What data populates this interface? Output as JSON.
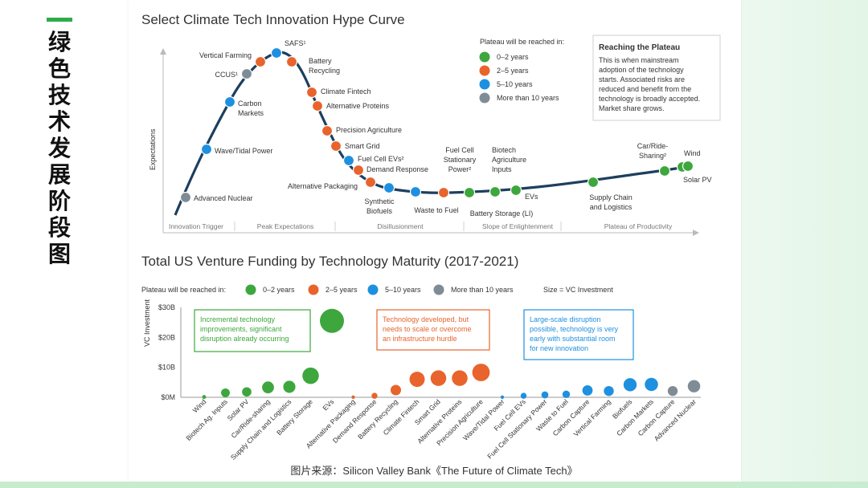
{
  "sidebar": {
    "title": "绿色技术发展阶段图"
  },
  "colors": {
    "g02": "#3da73d",
    "g25": "#e8642c",
    "g510": "#1e90e0",
    "g10p": "#7f8c96",
    "curve": "#1d3f5e",
    "accent": "#2dac48"
  },
  "hype": {
    "title": "Select Climate Tech Innovation Hype Curve",
    "y_label": "Expectations",
    "stages": [
      "Innovation Trigger",
      "Peak Expectations",
      "Disillusionment",
      "Slope of Enlightenment",
      "Plateau of Productivity"
    ],
    "legend_title": "Plateau will be reached in:",
    "legend": [
      "0–2 years",
      "2–5 years",
      "5–10 years",
      "More than 10 years"
    ],
    "info_title": "Reaching the Plateau",
    "info_lines": [
      "This is when mainstream",
      "adoption of the technology",
      "starts. Associated risks are",
      "reduced and benefit from the",
      "technology is broadly accepted.",
      "Market share grows."
    ],
    "labels": [
      [
        "Advanced Nuclear"
      ],
      [
        "Wave/Tidal Power"
      ],
      [
        "Carbon",
        "Markets"
      ],
      [
        "CCUS¹"
      ],
      [
        "Vertical Farming"
      ],
      [
        "SAFS¹"
      ],
      [
        "Battery",
        "Recycling"
      ],
      [
        "Climate Fintech"
      ],
      [
        "Alternative Proteins"
      ],
      [
        "Precision Agriculture"
      ],
      [
        "Smart Grid"
      ],
      [
        "Fuel Cell EVs²"
      ],
      [
        "Demand Response"
      ],
      [
        "Alternative Packaging"
      ],
      [
        "Synthetic",
        "Biofuels"
      ],
      [
        "Waste to Fuel"
      ],
      [
        "Fuel Cell",
        "Stationary",
        "Power²"
      ],
      [
        "Battery Storage (LI)"
      ],
      [
        "Biotech",
        "Agriculture",
        "Inputs"
      ],
      [
        "EVs"
      ],
      [
        "Supply Chain",
        "and Logistics"
      ],
      [
        "Car/Ride-",
        "Sharing²"
      ],
      [
        "Wind"
      ],
      [
        "Solar PV"
      ]
    ]
  },
  "chart_data": {
    "type": "scatter",
    "title": "Total US Venture Funding by Technology Maturity (2017-2021)",
    "xlabel": "",
    "ylabel": "VC Investment",
    "ylim": [
      0,
      30
    ],
    "yticks": [
      "$0M",
      "$10B",
      "$20B",
      "$30B"
    ],
    "legend_title": "Plateau will be reached in:",
    "legend": [
      "0–2 years",
      "2–5 years",
      "5–10 years",
      "More than 10 years"
    ],
    "size_note": "Size = VC Investment",
    "categories": [
      "Wind",
      "Biotech Ag. Inputs",
      "Solar PV",
      "Car/Ride-sharing",
      "Supply Chain and Logistics",
      "Battery Storage",
      "EVs",
      "Alternative Packaging",
      "Demand Response",
      "Battery Recycling",
      "Climate Fintech",
      "Smart Grid",
      "Alternative Proteins",
      "Precision Agriculture",
      "Wave/Tidal Power",
      "Fuel Cell EVs",
      "Fuel Cell Stationary Power",
      "Waste to Fuel",
      "Carbon Capture",
      "Vertical Farming",
      "Biofuels",
      "Carbon Markets",
      "Carbon Capture",
      "Advanced Nuclear"
    ],
    "values": [
      0.1,
      1.5,
      1.8,
      3.3,
      3.5,
      7.2,
      25.5,
      0.05,
      0.5,
      2.4,
      6.0,
      6.4,
      6.4,
      8.3,
      0.05,
      0.5,
      0.8,
      1.0,
      2.3,
      2.1,
      4.2,
      4.3,
      2.1,
      3.7
    ],
    "groups": [
      "g02",
      "g02",
      "g02",
      "g02",
      "g02",
      "g02",
      "g02",
      "g25",
      "g25",
      "g25",
      "g25",
      "g25",
      "g25",
      "g25",
      "g510",
      "g510",
      "g510",
      "g510",
      "g510",
      "g510",
      "g510",
      "g510",
      "g10p",
      "g10p"
    ],
    "boxes": [
      [
        "Incremental technology",
        "improvements, significant",
        "disruption already occurring"
      ],
      [
        "Technology developed, but",
        "needs to scale or overcome",
        "an infrastructure hurdle"
      ],
      [
        "Large-scale disruption",
        "possible, technology is very",
        "early with substantial room",
        "for new innovation"
      ]
    ]
  },
  "caption": "图片来源：Silicon Valley Bank《The Future of Climate Tech》"
}
